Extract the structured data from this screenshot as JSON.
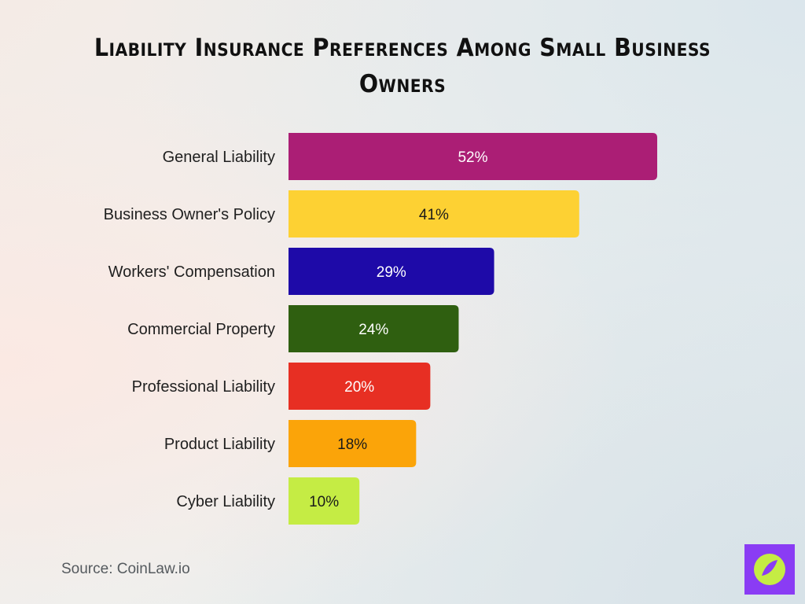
{
  "title": "Liability Insurance Preferences Among Small Business Owners",
  "source": "Source: CoinLaw.io",
  "chart_data": {
    "type": "bar",
    "orientation": "horizontal",
    "categories": [
      "General Liability",
      "Business Owner's Policy",
      "Workers' Compensation",
      "Commercial Property",
      "Professional Liability",
      "Product Liability",
      "Cyber Liability"
    ],
    "values": [
      52,
      41,
      29,
      24,
      20,
      18,
      10
    ],
    "value_labels": [
      "52%",
      "41%",
      "29%",
      "24%",
      "20%",
      "18%",
      "10%"
    ],
    "bar_colors": [
      "#ab1e75",
      "#fdd133",
      "#1e0aa8",
      "#2f5f10",
      "#e72f23",
      "#fba409",
      "#c5ec44"
    ],
    "label_colors": [
      "#ffffff",
      "#1a1a1a",
      "#ffffff",
      "#ffffff",
      "#ffffff",
      "#1a1a1a",
      "#1a1a1a"
    ],
    "grid": false,
    "legend": "none"
  },
  "logo": {
    "icon": "compass-icon",
    "background": "#8a3cf4",
    "circle": "#c5ec44"
  }
}
